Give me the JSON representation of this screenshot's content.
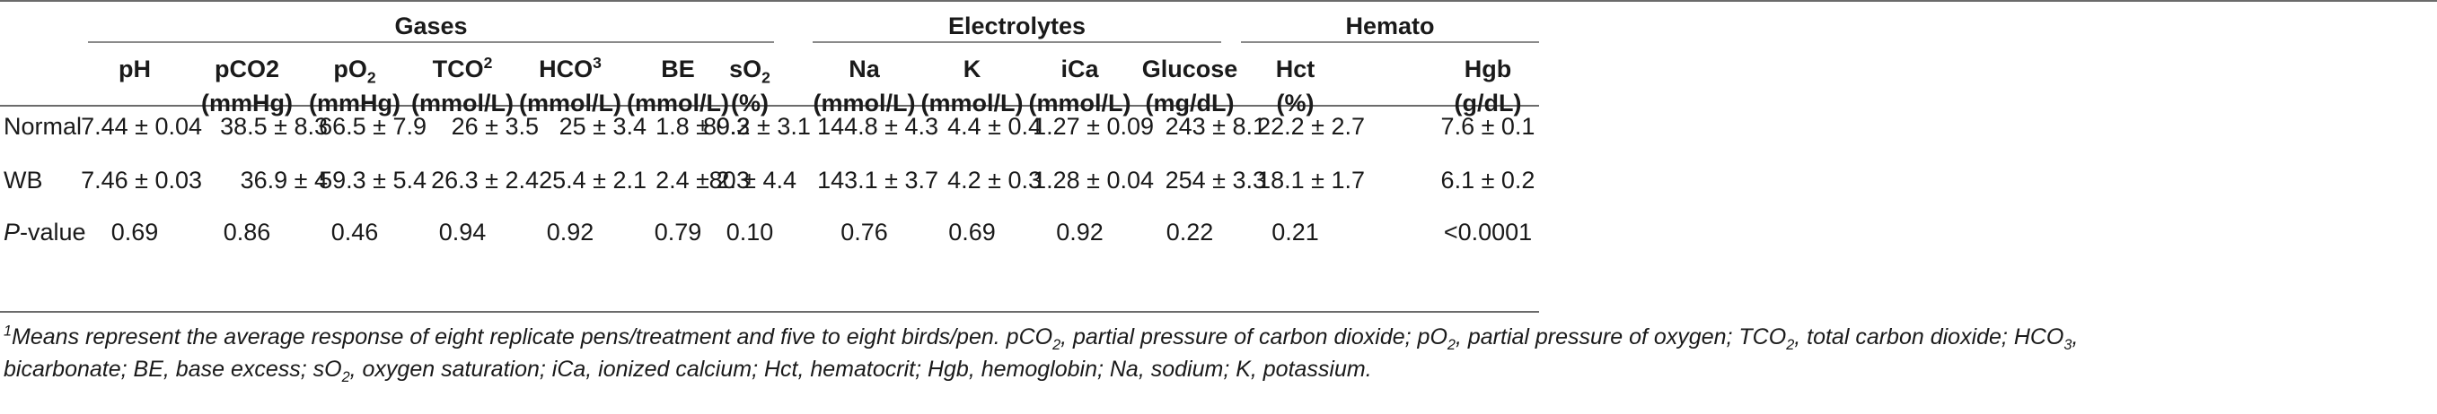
{
  "groups": {
    "gases": "Gases",
    "electrolytes": "Electrolytes",
    "hemato": "Hemato"
  },
  "columns": [
    {
      "name": "pH",
      "unit": ""
    },
    {
      "name": "pCO2",
      "unit": "(mmHg)"
    },
    {
      "name": "pO",
      "sub": "2",
      "unit": "(mmHg)"
    },
    {
      "name": "TCO",
      "sup": "2",
      "unit": "(mmol/L)"
    },
    {
      "name": "HCO",
      "sup": "3",
      "unit": "(mmol/L)"
    },
    {
      "name": "BE",
      "unit": "(mmol/L)"
    },
    {
      "name": "sO",
      "sub": "2",
      "unit": "(%)"
    },
    {
      "name": "Na",
      "unit": "(mmol/L)"
    },
    {
      "name": "K",
      "unit": "(mmol/L)"
    },
    {
      "name": "iCa",
      "unit": "(mmol/L)"
    },
    {
      "name": "Glucose",
      "unit": "(mg/dL)"
    },
    {
      "name": "Hct",
      "unit": "(%)"
    },
    {
      "name": "Hgb",
      "unit": "(g/dL)"
    }
  ],
  "rows": [
    {
      "label": "Normal",
      "italic": false,
      "cells": [
        "7.44 ± 0.04",
        "38.5 ± 8.3",
        "66.5 ± 7.9",
        "26 ± 3.5",
        "25 ± 3.4",
        "1.8 ± 0.3",
        "89.2 ± 3.1",
        "144.8 ± 4.3",
        "4.4 ± 0.4",
        "1.27 ± 0.09",
        "243 ± 8.1",
        "22.2 ± 2.7",
        "7.6 ± 0.1"
      ]
    },
    {
      "label": "WB",
      "italic": false,
      "cells": [
        "7.46 ± 0.03",
        "36.9 ± 4",
        "59.3 ± 5.4",
        "26.3 ± 2.4",
        "25.4 ± 2.1",
        "2.4 ± 2.3",
        "80 ± 4.4",
        "143.1 ± 3.7",
        "4.2 ± 0.3",
        "1.28 ± 0.04",
        "254 ± 3.3",
        "18.1 ± 1.7",
        "6.1 ± 0.2"
      ]
    },
    {
      "label_italic": "P",
      "label_rest": "-value",
      "cells": [
        "0.69",
        "0.86",
        "0.46",
        "0.94",
        "0.92",
        "0.79",
        "0.10",
        "0.76",
        "0.69",
        "0.92",
        "0.22",
        "0.21",
        "<0.0001"
      ]
    }
  ],
  "footnote": {
    "marker": "1",
    "line1_a": "Means represent the average response of eight replicate pens/treatment and five to eight birds/pen. pCO",
    "line1_b": ", partial pressure of carbon dioxide; pO",
    "line1_c": ", partial pressure of oxygen; TCO",
    "line1_d": ", total carbon dioxide; HCO",
    "line1_e": ",",
    "line2_a": "bicarbonate; BE, base excess; sO",
    "line2_b": ", oxygen saturation; iCa, ionized calcium; Hct, hematocrit; Hgb, hemoglobin; Na, sodium; K, potassium.",
    "sub2": "2",
    "sub3": "3"
  }
}
